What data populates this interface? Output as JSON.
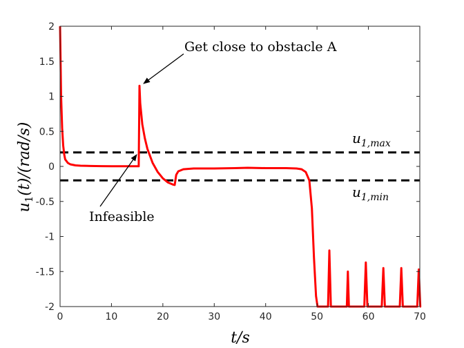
{
  "chart_data": {
    "type": "line",
    "title": "",
    "xlabel": "t/s",
    "ylabel": "u1(t)/(rad/s)",
    "xlim": [
      0,
      70
    ],
    "ylim": [
      -2,
      2
    ],
    "xticks": [
      0,
      10,
      20,
      30,
      40,
      50,
      60,
      70
    ],
    "xtick_labels": [
      "0",
      "10",
      "20",
      "30",
      "40",
      "50",
      "60",
      "70"
    ],
    "yticks": [
      2,
      1.5,
      1,
      0.5,
      0,
      -0.5,
      -1,
      -1.5,
      -2
    ],
    "ytick_labels": [
      "2",
      "1.5",
      "1",
      "0.5",
      "0",
      "-0.5",
      "-1",
      "-1.5",
      "-2"
    ],
    "grid": false,
    "series": [
      {
        "name": "u1(t)",
        "color": "#ff0000",
        "points": [
          [
            0,
            2.0
          ],
          [
            0.2,
            1.0
          ],
          [
            0.4,
            0.55
          ],
          [
            0.6,
            0.3
          ],
          [
            0.8,
            0.17
          ],
          [
            1.0,
            0.1
          ],
          [
            1.5,
            0.05
          ],
          [
            2,
            0.03
          ],
          [
            3,
            0.015
          ],
          [
            4,
            0.01
          ],
          [
            6,
            0.006
          ],
          [
            8,
            0.004
          ],
          [
            10,
            0.003
          ],
          [
            12,
            0.003
          ],
          [
            14,
            0.002
          ],
          [
            15.3,
            0.002
          ],
          [
            15.45,
            1.15
          ],
          [
            15.6,
            0.9
          ],
          [
            16,
            0.6
          ],
          [
            16.5,
            0.4
          ],
          [
            17,
            0.25
          ],
          [
            18,
            0.05
          ],
          [
            19,
            -0.08
          ],
          [
            20,
            -0.17
          ],
          [
            21,
            -0.23
          ],
          [
            22,
            -0.26
          ],
          [
            22.3,
            -0.265
          ],
          [
            22.6,
            -0.12
          ],
          [
            23,
            -0.07
          ],
          [
            24,
            -0.04
          ],
          [
            26,
            -0.03
          ],
          [
            30,
            -0.03
          ],
          [
            34,
            -0.025
          ],
          [
            36.5,
            -0.02
          ],
          [
            40,
            -0.025
          ],
          [
            44,
            -0.025
          ],
          [
            46,
            -0.03
          ],
          [
            47,
            -0.04
          ],
          [
            47.8,
            -0.08
          ],
          [
            48.5,
            -0.2
          ],
          [
            49,
            -0.6
          ],
          [
            49.4,
            -1.3
          ],
          [
            49.8,
            -1.85
          ],
          [
            50.1,
            -2.0
          ],
          [
            52.15,
            -2.0
          ],
          [
            52.4,
            -1.2
          ],
          [
            52.7,
            -2.0
          ],
          [
            55.8,
            -2.0
          ],
          [
            56.0,
            -1.5
          ],
          [
            56.2,
            -2.0
          ],
          [
            59.2,
            -2.0
          ],
          [
            59.5,
            -1.37
          ],
          [
            59.8,
            -2.0
          ],
          [
            62.6,
            -2.0
          ],
          [
            62.9,
            -1.45
          ],
          [
            63.2,
            -2.0
          ],
          [
            66.1,
            -2.0
          ],
          [
            66.4,
            -1.45
          ],
          [
            66.7,
            -2.0
          ],
          [
            69.5,
            -2.0
          ],
          [
            69.8,
            -1.47
          ],
          [
            70.1,
            -2.0
          ],
          [
            70,
            -2.0
          ]
        ]
      }
    ],
    "reference_lines": [
      {
        "name": "u1,max",
        "y": 0.2,
        "style": "dashed",
        "color": "#000000"
      },
      {
        "name": "u1,min",
        "y": -0.2,
        "style": "dashed",
        "color": "#000000"
      }
    ],
    "labels": {
      "u_max_base": "u",
      "u_max_sub": "1,max",
      "u_min_base": "u",
      "u_min_sub": "1,min",
      "ylabel_parts": [
        "u",
        "1",
        "(t)/(rad/s)"
      ],
      "xlabel_text": "t/s"
    },
    "annotations": [
      {
        "text": "Get close to obstacle A",
        "target": [
          15.45,
          1.15
        ]
      },
      {
        "text": "Infeasible",
        "target": [
          15.45,
          0.15
        ]
      }
    ]
  }
}
